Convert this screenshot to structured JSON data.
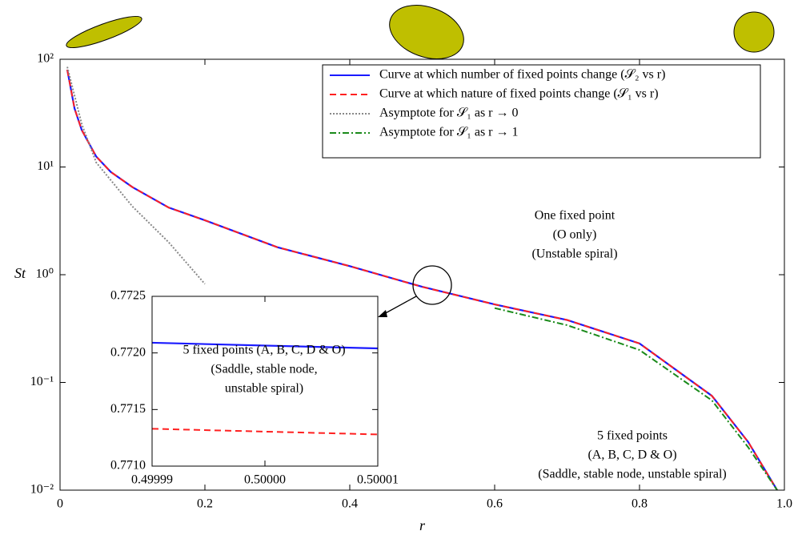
{
  "chart_data": [
    {
      "type": "line",
      "xlabel": "r",
      "ylabel": "St",
      "yscale": "log",
      "xlim": [
        0,
        1
      ],
      "xticks": [
        0,
        0.2,
        0.4,
        0.6,
        0.8,
        {
          "value": 1,
          "label": "1.0"
        }
      ],
      "ylim": [
        0.01,
        100
      ],
      "yticks": [
        {
          "value": 0.01,
          "label": "10⁻²"
        },
        {
          "value": 0.1,
          "label": "10⁻¹"
        },
        {
          "value": 1,
          "label": "10⁰"
        },
        {
          "value": 10,
          "label": "10¹"
        },
        {
          "value": 100,
          "label": "10²"
        }
      ],
      "legend": "upper right",
      "series": [
        {
          "name": "Curve at which number of fixed points change (𝒮₂ vs r)",
          "color": "#1a1aff",
          "linestyle": "solid",
          "x": [
            0.01,
            0.02,
            0.03,
            0.05,
            0.07,
            0.1,
            0.15,
            0.2,
            0.3,
            0.4,
            0.5,
            0.6,
            0.7,
            0.8,
            0.9,
            0.95,
            0.99
          ],
          "values": [
            80,
            35,
            22,
            12.5,
            9,
            6.5,
            4.2,
            3.2,
            1.8,
            1.2,
            0.772,
            0.53,
            0.38,
            0.23,
            0.075,
            0.028,
            0.01
          ]
        },
        {
          "name": "Curve at which nature of fixed points change (𝒮₁ vs r)",
          "color": "#ff2020",
          "linestyle": "dashed",
          "x": [
            0.01,
            0.02,
            0.03,
            0.05,
            0.07,
            0.1,
            0.15,
            0.2,
            0.3,
            0.4,
            0.5,
            0.6,
            0.7,
            0.8,
            0.9,
            0.95,
            0.99
          ],
          "values": [
            80,
            35,
            22,
            12.5,
            9,
            6.5,
            4.2,
            3.2,
            1.8,
            1.2,
            0.771,
            0.53,
            0.38,
            0.23,
            0.075,
            0.028,
            0.01
          ]
        },
        {
          "name": "Asymptote for 𝒮₁ as r → 0",
          "color": "#888888",
          "linestyle": "dotted",
          "x": [
            0.01,
            0.03,
            0.05,
            0.1,
            0.15,
            0.2
          ],
          "values": [
            85,
            25,
            11,
            4.3,
            2.0,
            0.82
          ]
        },
        {
          "name": "Asymptote for 𝒮₁ as r → 1",
          "color": "#1a8a1a",
          "linestyle": "dashdot",
          "x": [
            0.6,
            0.7,
            0.8,
            0.9,
            0.95,
            0.99
          ],
          "values": [
            0.49,
            0.34,
            0.2,
            0.068,
            0.025,
            0.01
          ]
        }
      ],
      "annotations": [
        [
          "One fixed point",
          "(O only)",
          "(Unstable spiral)"
        ],
        [
          "5 fixed points",
          "(A, B, C, D & O)",
          "(Saddle, stable node, unstable spiral)"
        ]
      ]
    },
    {
      "type": "line",
      "yscale": "linear",
      "xlim": [
        0.49999,
        0.50001
      ],
      "xticks": [
        0.49999,
        {
          "value": 0.5,
          "label": "0.50000"
        },
        0.50001
      ],
      "ylim": [
        0.771,
        0.7725
      ],
      "yticks": [
        {
          "value": 0.771,
          "label": "0.7710"
        },
        0.7715,
        {
          "value": 0.772,
          "label": "0.7720"
        },
        0.7725
      ],
      "series": [
        {
          "color": "#1a1aff",
          "linestyle": "solid",
          "x": [
            0.49999,
            0.50001
          ],
          "values": [
            0.77209,
            0.77204
          ]
        },
        {
          "color": "#ff2020",
          "linestyle": "dashed",
          "x": [
            0.49999,
            0.50001
          ],
          "values": [
            0.77133,
            0.77128
          ]
        }
      ],
      "annotations": [
        [
          "5 fixed points (A, B, C, D & O)",
          "(Saddle, stable node,",
          "unstable spiral)"
        ]
      ]
    }
  ]
}
